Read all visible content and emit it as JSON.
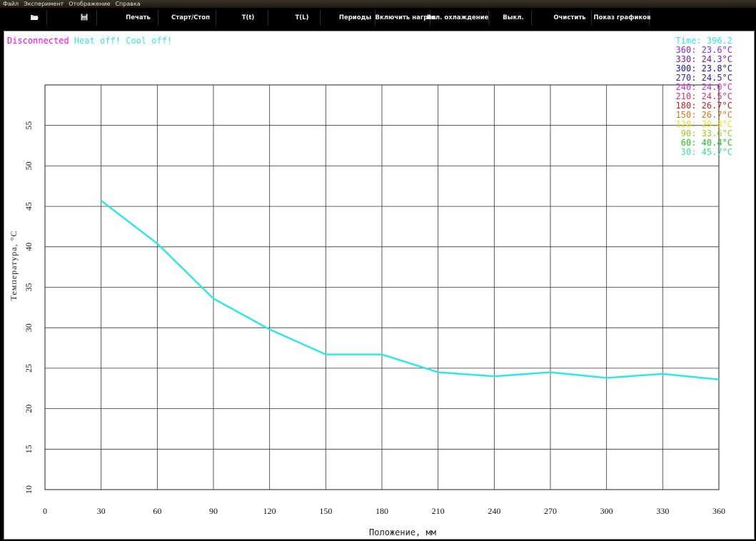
{
  "menu": [
    "Файл",
    "Эксперимент",
    "Отображение",
    "Справка"
  ],
  "toolbar": {
    "icons": [
      {
        "name": "open-icon",
        "glyph": "📂"
      },
      {
        "name": "save-icon",
        "glyph": "💾"
      }
    ],
    "buttons": [
      "Печать",
      "Старт/Стоп",
      "T(t)",
      "T(L)",
      "Периоды",
      "Включить нагрев",
      "Вкл. охлаждение",
      "Выкл.",
      "Очистить",
      "Показ графиков"
    ]
  },
  "status": {
    "connection": "Disconnected",
    "heat": "Heat off!",
    "cool": "Cool off!",
    "connection_color": "#ff00ff",
    "state_color": "#33e6e6"
  },
  "readout": {
    "time_label": "Time: 396.2",
    "time_color": "#33e6e6",
    "rows": [
      {
        "text": "360: 23.6°C",
        "color": "#8a2be2"
      },
      {
        "text": "330: 24.3°C",
        "color": "#7a1f8c"
      },
      {
        "text": "300: 23.8°C",
        "color": "#1a1a8c"
      },
      {
        "text": "270: 24.5°C",
        "color": "#3a1f9e"
      },
      {
        "text": "240: 24.0°C",
        "color": "#cc33cc"
      },
      {
        "text": "210: 24.5°C",
        "color": "#d6336e"
      },
      {
        "text": "180: 26.7°C",
        "color": "#c81e1e"
      },
      {
        "text": "150: 26.7°C",
        "color": "#d2771e"
      },
      {
        "text": "120: 29.8°C",
        "color": "#e6e61e"
      },
      {
        "text": "90: 33.6°C",
        "color": "#9ccc1e"
      },
      {
        "text": "60: 40.4°C",
        "color": "#1ec81e"
      },
      {
        "text": "30: 45.7°C",
        "color": "#33e699"
      }
    ]
  },
  "chart_data": {
    "type": "line",
    "xlabel": "Положение, мм",
    "ylabel": "Температура, °C",
    "xlim": [
      0,
      360
    ],
    "ylim": [
      10,
      60
    ],
    "x_ticks": [
      0,
      30,
      60,
      90,
      120,
      150,
      180,
      210,
      240,
      270,
      300,
      330,
      360
    ],
    "y_ticks": [
      10,
      15,
      20,
      25,
      30,
      35,
      40,
      45,
      50,
      55
    ],
    "grid": true,
    "series": [
      {
        "color": "#33e6e6",
        "x": [
          30,
          60,
          90,
          120,
          150,
          180,
          210,
          240,
          270,
          300,
          330,
          360
        ],
        "y": [
          45.7,
          40.4,
          33.6,
          29.8,
          26.7,
          26.7,
          24.5,
          24.0,
          24.5,
          23.8,
          24.3,
          23.6
        ]
      }
    ]
  }
}
